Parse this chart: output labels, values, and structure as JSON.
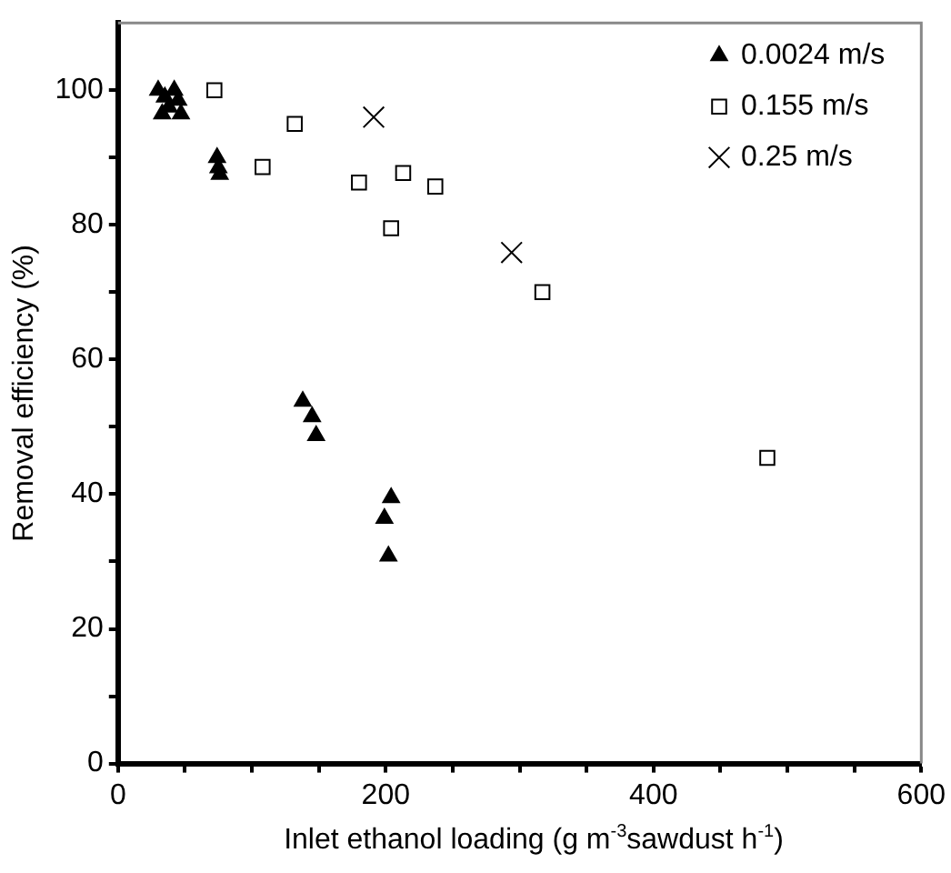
{
  "chart_data": {
    "type": "scatter",
    "xlabel": "Inlet ethanol loading (g m$^{-3}$sawdust h$^{-1}$)",
    "ylabel": "Removal efficiency (%)",
    "xlim": [
      0,
      600
    ],
    "xticks": [
      0,
      {
        "value": 50,
        "label": null
      },
      {
        "value": 100,
        "label": null
      },
      {
        "value": 150,
        "label": null
      },
      200,
      {
        "value": 250,
        "label": null
      },
      {
        "value": 300,
        "label": null
      },
      {
        "value": 350,
        "label": null
      },
      400,
      {
        "value": 450,
        "label": null
      },
      {
        "value": 500,
        "label": null
      },
      {
        "value": 550,
        "label": null
      },
      600
    ],
    "ylim": [
      0,
      110
    ],
    "yticks": [
      0,
      {
        "value": 10,
        "label": null
      },
      20,
      {
        "value": 30,
        "label": null
      },
      40,
      {
        "value": 50,
        "label": null
      },
      60,
      {
        "value": 70,
        "label": null
      },
      80,
      {
        "value": 90,
        "label": null
      },
      100
    ],
    "grid": false,
    "legend": "top right",
    "series": [
      {
        "name": "0.0024 m/s",
        "color": "#000000",
        "marker": "triangle",
        "x": [
          30,
          35,
          42,
          45,
          33,
          47,
          38,
          74,
          75,
          76,
          138,
          145,
          148,
          204,
          199,
          202
        ],
        "values": [
          100,
          99,
          100,
          98.5,
          96.5,
          96.5,
          97.5,
          90,
          88.5,
          87.5,
          53.8,
          51.5,
          48.7,
          39.5,
          36.4,
          30.8
        ]
      },
      {
        "name": "0.155 m/s",
        "color": "#000000",
        "marker": "square",
        "x": [
          72,
          108,
          132,
          180,
          204,
          213,
          237,
          317,
          485
        ],
        "values": [
          100,
          88.6,
          95,
          86.3,
          79.5,
          87.7,
          85.7,
          70,
          45.4
        ]
      },
      {
        "name": "0.25 m/s",
        "color": "#000000",
        "marker": "cross",
        "x": [
          191,
          294
        ],
        "values": [
          96,
          75.9
        ]
      }
    ]
  }
}
